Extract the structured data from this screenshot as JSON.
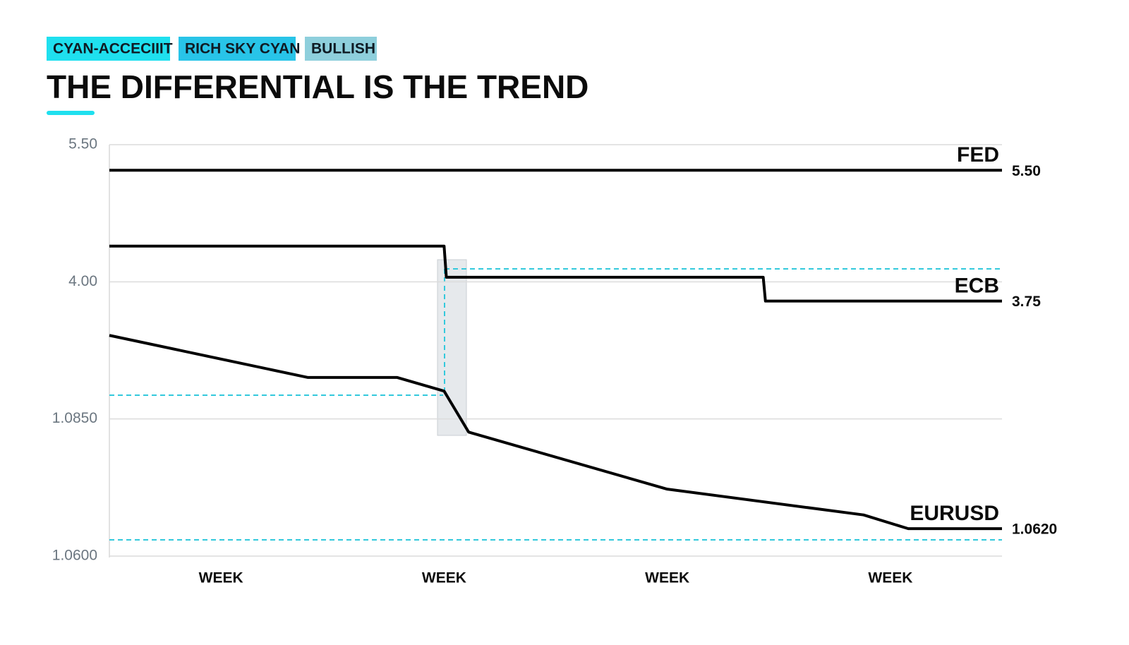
{
  "tags": [
    "CYAN-ACCECIIIT",
    "RICH SKY CYAN",
    "BULLISH"
  ],
  "chart_data": {
    "type": "line",
    "title": "THE DIFFERENTIAL IS THE TREND",
    "xlim": [
      0.5,
      4.5
    ],
    "xticks": [
      {
        "value": 1,
        "label": "WEEK"
      },
      {
        "value": 2,
        "label": "WEEK"
      },
      {
        "value": 3,
        "label": "WEEK"
      },
      {
        "value": 4,
        "label": "WEEK"
      }
    ],
    "ylim": [
      1.06,
      5.5
    ],
    "yticks": [
      {
        "value": 5.5,
        "label": "5.50"
      },
      {
        "value": 4,
        "label": "4.00"
      },
      {
        "value": 1.085,
        "label": "1.0850"
      },
      {
        "value": 1.06,
        "label": "1.0600"
      }
    ],
    "grid": true,
    "series": [
      {
        "name": "FED",
        "color": "#000000",
        "x": [
          0.5,
          4.5
        ],
        "values": [
          5.22,
          5.22
        ]
      },
      {
        "name": "ECB",
        "color": "#000000",
        "x": [
          0.5,
          2.0,
          2.01,
          3.43,
          3.44,
          4.5
        ],
        "values": [
          4.39,
          4.39,
          4.05,
          4.05,
          3.59,
          3.59
        ]
      },
      {
        "name": "EURUSD",
        "color": "#000000",
        "x": [
          0.5,
          1.39,
          1.79,
          2.0,
          2.11,
          3.0,
          3.88,
          4.08,
          4.5
        ],
        "values": [
          2.861,
          1.966,
          1.966,
          1.677,
          1.0826,
          1.0722,
          1.0675,
          1.065,
          1.065
        ]
      }
    ],
    "annotations": [
      "5.50",
      "3.75",
      "1.0620"
    ]
  }
}
